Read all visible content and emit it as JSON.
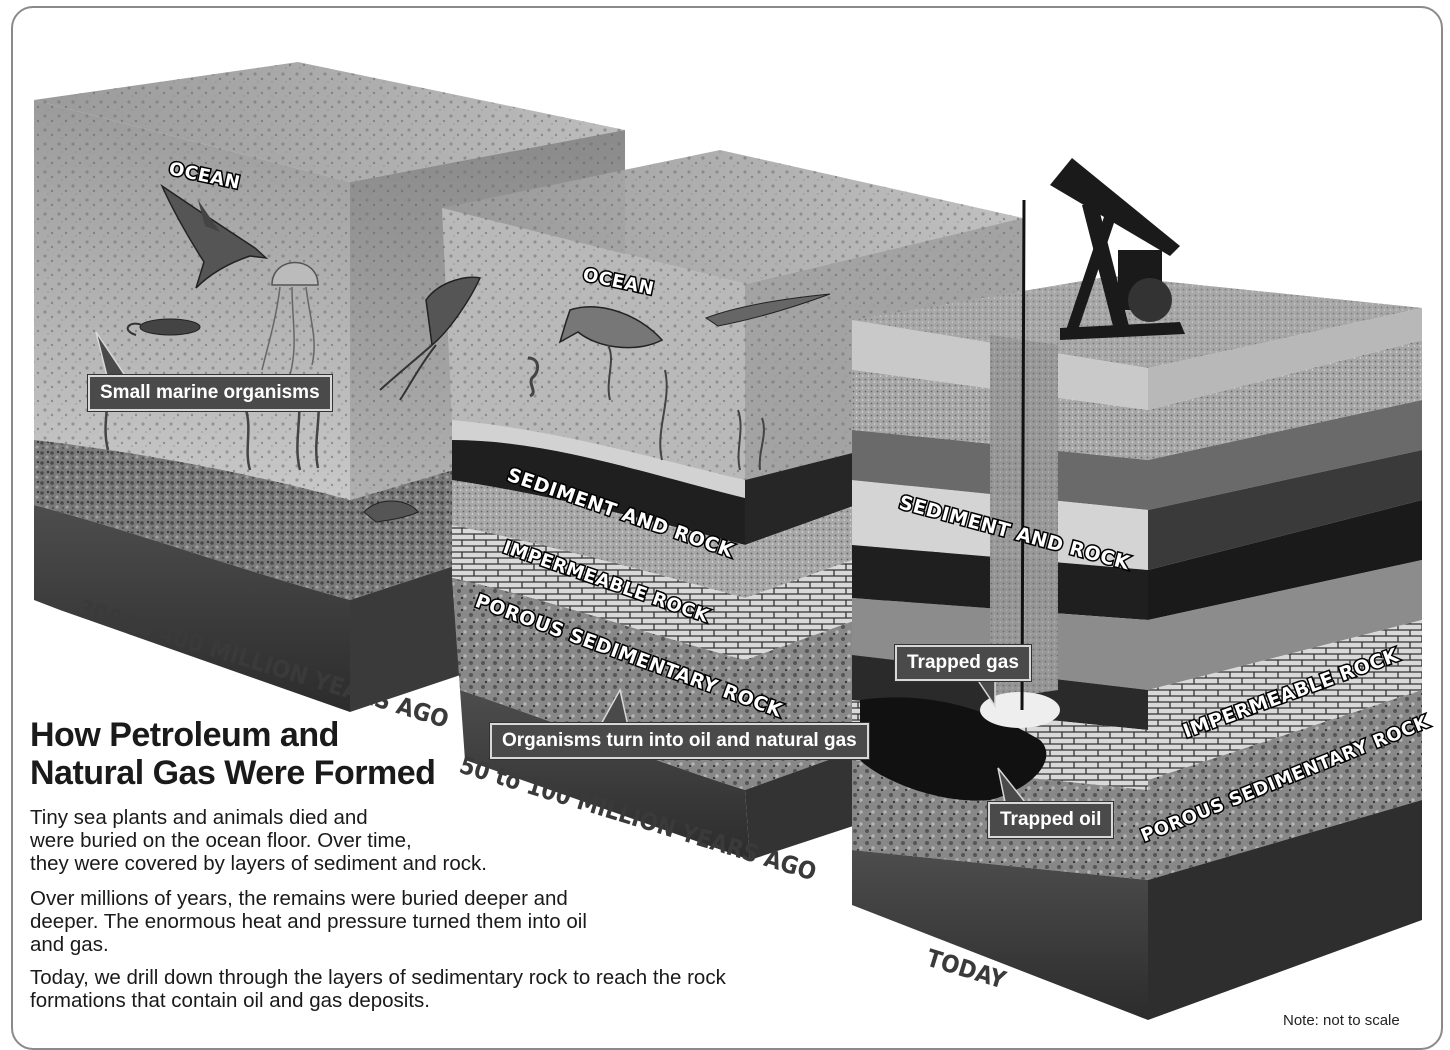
{
  "diagram": {
    "labels": {
      "ocean_1": "OCEAN",
      "ocean_2": "OCEAN",
      "small_marine": "Small marine organisms",
      "sediment_rock_2": "SEDIMENT AND ROCK",
      "impermeable_2": "IMPERMEABLE ROCK",
      "porous_2": "POROUS SEDIMENTARY ROCK",
      "organisms_turn": "Organisms turn into oil and natural gas",
      "sediment_rock_3": "SEDIMENT AND ROCK",
      "trapped_gas": "Trapped gas",
      "trapped_oil": "Trapped oil",
      "impermeable_3": "IMPERMEABLE ROCK",
      "porous_3": "POROUS SEDIMENTARY ROCK"
    },
    "eras": {
      "era_1": "300 to 400 MILLION YEARS AGO",
      "era_2": "50 to 100 MILLION YEARS AGO",
      "era_3": "TODAY"
    }
  },
  "text": {
    "title_line1": "How Petroleum and",
    "title_line2": "Natural Gas Were Formed",
    "para1_line1": "Tiny sea plants and animals died and",
    "para1_line2": "were buried on the ocean floor. Over time,",
    "para1_line3": "they were covered by layers of sediment and rock.",
    "para2_line1": "Over millions of years, the remains were buried deeper and",
    "para2_line2": "deeper. The enormous heat and pressure turned them into oil",
    "para2_line3": "and gas.",
    "para3_line1": "Today, we drill down through the layers of sedimentary rock to reach the rock",
    "para3_line2": "formations that contain oil and gas deposits."
  },
  "note": "Note: not to scale"
}
